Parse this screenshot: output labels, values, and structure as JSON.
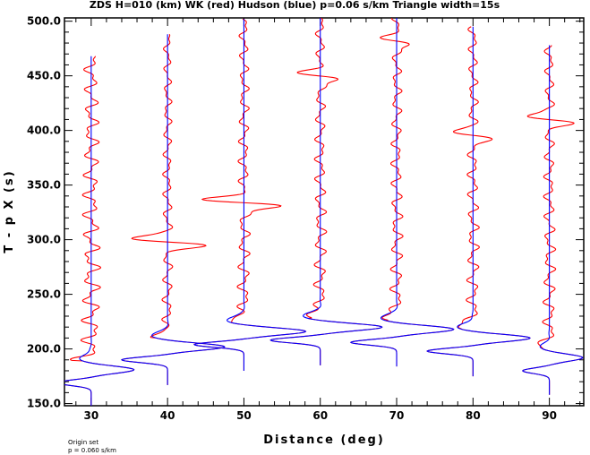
{
  "chart_data": {
    "type": "line",
    "title": "ZDS H=010 (km) WK (red) Hudson (blue) p=0.06 s/km Triangle width=15s",
    "xlabel": "Distance (deg)",
    "ylabel": "T - p X (s)",
    "xlim": [
      26.5,
      94.5
    ],
    "ylim": [
      148,
      503
    ],
    "x_ticks": [
      30,
      40,
      50,
      60,
      70,
      80,
      90
    ],
    "x_tick_labels": [
      "30",
      "40",
      "50",
      "60",
      "70",
      "80",
      "90"
    ],
    "y_ticks": [
      150,
      200,
      250,
      300,
      350,
      400,
      450,
      500
    ],
    "y_tick_labels": [
      "150.0",
      "200.0",
      "250.0",
      "300.0",
      "350.0",
      "400.0",
      "450.0",
      "500.0"
    ],
    "grid": false,
    "legend": "none",
    "series": [
      {
        "name": "WK",
        "color": "#ff0000"
      },
      {
        "name": "Hudson",
        "color": "#0000ff"
      }
    ],
    "traces": [
      {
        "distance": 30,
        "start": 148,
        "end": 468,
        "p_time": 181,
        "p_amp": 4.5,
        "coda_amp": 0.9,
        "late": null
      },
      {
        "distance": 40,
        "start": 167,
        "end": 488,
        "p_time": 202,
        "p_amp": 6.0,
        "coda_amp": 0.5,
        "late": {
          "t": 298,
          "amp": 5.2
        }
      },
      {
        "distance": 50,
        "start": 180,
        "end": 502,
        "p_time": 216,
        "p_amp": 6.5,
        "coda_amp": 0.6,
        "late": {
          "t": 334,
          "amp": 5.8
        }
      },
      {
        "distance": 60,
        "start": 185,
        "end": 505,
        "p_time": 220,
        "p_amp": 6.5,
        "coda_amp": 0.6,
        "late": {
          "t": 450,
          "amp": 3.0
        }
      },
      {
        "distance": 70,
        "start": 184,
        "end": 505,
        "p_time": 218,
        "p_amp": 6.0,
        "coda_amp": 0.6,
        "late": {
          "t": 482,
          "amp": 1.8
        }
      },
      {
        "distance": 80,
        "start": 175,
        "end": 495,
        "p_time": 210,
        "p_amp": 6.0,
        "coda_amp": 0.6,
        "late": {
          "t": 396,
          "amp": 2.8
        }
      },
      {
        "distance": 90,
        "start": 158,
        "end": 478,
        "p_time": 192,
        "p_amp": 3.5,
        "coda_amp": 0.6,
        "late": {
          "t": 410,
          "amp": 3.0
        }
      }
    ],
    "footer_lines": [
      "Origin set",
      "p = 0.060 s/km"
    ]
  }
}
